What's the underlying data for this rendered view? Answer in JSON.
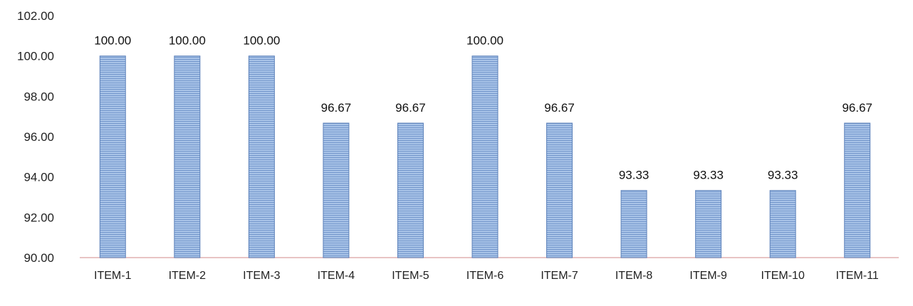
{
  "chart_data": {
    "type": "bar",
    "categories": [
      "ITEM-1",
      "ITEM-2",
      "ITEM-3",
      "ITEM-4",
      "ITEM-5",
      "ITEM-6",
      "ITEM-7",
      "ITEM-8",
      "ITEM-9",
      "ITEM-10",
      "ITEM-11"
    ],
    "values": [
      100.0,
      100.0,
      100.0,
      96.67,
      96.67,
      100.0,
      96.67,
      93.33,
      93.33,
      93.33,
      96.67
    ],
    "value_labels": [
      "100.00",
      "100.00",
      "100.00",
      "96.67",
      "96.67",
      "100.00",
      "96.67",
      "93.33",
      "93.33",
      "93.33",
      "96.67"
    ],
    "y_ticks": [
      "90.00",
      "92.00",
      "94.00",
      "96.00",
      "98.00",
      "100.00",
      "102.00"
    ],
    "ylim": [
      90,
      102
    ],
    "title": "",
    "xlabel": "",
    "ylabel": "",
    "grid": false,
    "legend": "none",
    "colors": {
      "bar_fill": "#9fbce3",
      "bar_stripe": "#6f93c8",
      "bar_edge": "#5d82ba",
      "axis_line": "#e8c4c4"
    }
  }
}
